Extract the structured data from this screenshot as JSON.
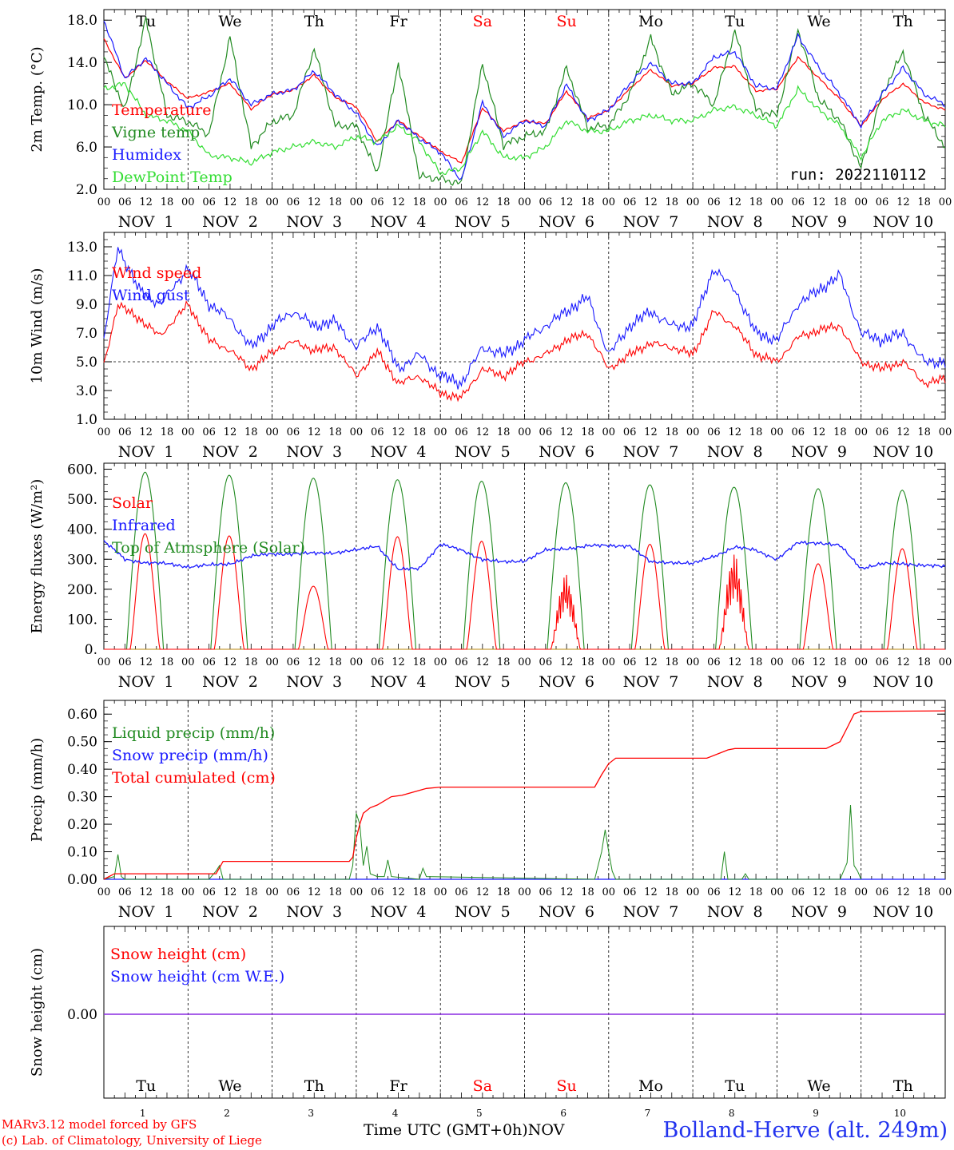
{
  "run_label": "run: 2022110112",
  "station": "Bolland-Herve (alt. 249m)",
  "credit": {
    "line1": "MARv3.12 model forced by GFS",
    "line2": "(c) Lab. of Climatology, University of Liege"
  },
  "x_title": "Time UTC (GMT+0h)",
  "x_title_suffix": "NOV",
  "weekdays": [
    "Tu",
    "We",
    "Th",
    "Fr",
    "Sa",
    "Su",
    "Mo",
    "Tu",
    "We",
    "Th"
  ],
  "weekday_colors": [
    "#000000",
    "#000000",
    "#000000",
    "#000000",
    "#ff0000",
    "#ff0000",
    "#000000",
    "#000000",
    "#000000",
    "#000000"
  ],
  "date_labels": [
    "NOV  1",
    "NOV  2",
    "NOV  3",
    "NOV  4",
    "NOV  5",
    "NOV  6",
    "NOV  7",
    "NOV  8",
    "NOV  9",
    "NOV 10"
  ],
  "day_numbers": [
    "1",
    "2",
    "3",
    "4",
    "5",
    "6",
    "7",
    "8",
    "9",
    "10"
  ],
  "hour_ticks": [
    "00",
    "06",
    "12",
    "18"
  ],
  "colors": {
    "red": "#ff0000",
    "green": "#228b22",
    "blue": "#1a1aff",
    "light_green": "#33dd33",
    "purple": "#8a2be2",
    "dashed": "#000000"
  },
  "chart_data": [
    {
      "type": "line",
      "ylabel": "2m Temp. (°C)",
      "ylim": [
        2.0,
        19.0
      ],
      "yticks": [
        "2.0",
        "6.0",
        "10.0",
        "14.0",
        "18.0"
      ],
      "ytick_values": [
        2,
        6,
        10,
        14,
        18
      ],
      "x_unit": "hours since 2022-11-01 00 UTC",
      "series": [
        {
          "name": "Temperature",
          "color": "#ff0000",
          "x": [
            0,
            6,
            12,
            18,
            24,
            30,
            36,
            42,
            48,
            54,
            60,
            66,
            72,
            78,
            84,
            90,
            96,
            102,
            108,
            114,
            120,
            126,
            132,
            138,
            144,
            150,
            156,
            162,
            168,
            174,
            180,
            186,
            192,
            198,
            204,
            210,
            216,
            222,
            228,
            234,
            240
          ],
          "values": [
            16.2,
            12.5,
            14.2,
            12.2,
            10.6,
            11.2,
            12.0,
            9.6,
            11.0,
            11.4,
            12.8,
            10.7,
            9.8,
            6.5,
            8.5,
            7.0,
            5.6,
            4.5,
            9.7,
            7.5,
            8.5,
            8.2,
            11.3,
            8.7,
            9.5,
            11.5,
            13.3,
            11.8,
            12.0,
            13.5,
            13.6,
            11.3,
            11.5,
            14.5,
            12.5,
            10.5,
            8.0,
            10.5,
            12.0,
            10.2,
            9.5
          ]
        },
        {
          "name": "Vigne temp",
          "color": "#228b22",
          "x": [
            0,
            6,
            12,
            18,
            24,
            30,
            36,
            42,
            48,
            54,
            60,
            66,
            72,
            78,
            84,
            90,
            96,
            102,
            108,
            114,
            120,
            126,
            132,
            138,
            144,
            150,
            156,
            162,
            168,
            174,
            180,
            186,
            192,
            198,
            204,
            210,
            216,
            222,
            228,
            234,
            240
          ],
          "values": [
            14.5,
            9.5,
            18.1,
            9.0,
            8.4,
            7.2,
            16.4,
            6.0,
            8.4,
            9.0,
            15.3,
            8.0,
            8.0,
            3.5,
            14.0,
            3.2,
            3.0,
            2.5,
            13.9,
            6.2,
            7.0,
            7.5,
            13.5,
            7.8,
            8.0,
            11.0,
            16.3,
            11.0,
            12.0,
            10.0,
            17.0,
            9.5,
            9.0,
            17.1,
            10.5,
            8.5,
            4.0,
            11.0,
            15.0,
            9.0,
            6.0
          ]
        },
        {
          "name": "Humidex",
          "color": "#1a1aff",
          "x": [
            0,
            6,
            12,
            18,
            24,
            30,
            36,
            42,
            48,
            54,
            60,
            66,
            72,
            78,
            84,
            90,
            96,
            102,
            108,
            114,
            120,
            126,
            132,
            138,
            144,
            150,
            156,
            162,
            168,
            174,
            180,
            186,
            192,
            198,
            204,
            210,
            216,
            222,
            228,
            234,
            240
          ],
          "values": [
            18.0,
            12.5,
            14.4,
            12.0,
            9.7,
            10.8,
            12.5,
            10.0,
            11.0,
            11.4,
            13.2,
            11.0,
            9.2,
            6.0,
            8.5,
            6.8,
            5.5,
            2.8,
            10.2,
            7.0,
            8.5,
            8.0,
            11.9,
            8.5,
            9.5,
            12.0,
            14.0,
            12.0,
            12.0,
            14.5,
            15.0,
            11.8,
            11.5,
            16.5,
            13.5,
            11.0,
            8.0,
            11.0,
            13.5,
            11.0,
            10.0
          ]
        },
        {
          "name": "DewPoint Temp",
          "color": "#33dd33",
          "x": [
            0,
            6,
            12,
            18,
            24,
            30,
            36,
            42,
            48,
            54,
            60,
            66,
            72,
            78,
            84,
            90,
            96,
            102,
            108,
            114,
            120,
            126,
            132,
            138,
            144,
            150,
            156,
            162,
            168,
            174,
            180,
            186,
            192,
            198,
            204,
            210,
            216,
            222,
            228,
            234,
            240
          ],
          "values": [
            11.5,
            12.0,
            9.0,
            8.5,
            7.5,
            5.2,
            5.0,
            4.5,
            5.5,
            6.0,
            6.5,
            6.0,
            7.0,
            6.5,
            8.0,
            6.5,
            3.5,
            4.0,
            7.5,
            5.0,
            5.0,
            6.0,
            8.5,
            7.5,
            7.5,
            8.5,
            9.0,
            8.5,
            8.5,
            9.5,
            9.8,
            9.0,
            8.0,
            11.5,
            9.5,
            8.0,
            5.0,
            8.5,
            9.5,
            8.5,
            8.0
          ]
        }
      ]
    },
    {
      "type": "line",
      "ylabel": "10m Wind (m/s)",
      "ylim": [
        1.0,
        14.0
      ],
      "yticks": [
        "1.0",
        "3.0",
        "5.0",
        "7.0",
        "9.0",
        "11.0",
        "13.0"
      ],
      "ytick_values": [
        1,
        3,
        5,
        7,
        9,
        11,
        13
      ],
      "reference_line": 5.0,
      "x_unit": "hours since 2022-11-01 00 UTC",
      "series": [
        {
          "name": "Wind speed",
          "color": "#ff0000",
          "x": [
            0,
            4,
            10,
            16,
            24,
            30,
            36,
            42,
            48,
            54,
            60,
            66,
            72,
            78,
            84,
            90,
            96,
            102,
            108,
            114,
            120,
            126,
            132,
            138,
            144,
            150,
            156,
            162,
            168,
            174,
            180,
            186,
            192,
            198,
            204,
            210,
            216,
            222,
            228,
            234,
            240
          ],
          "values": [
            4.8,
            9.0,
            8.0,
            6.8,
            9.0,
            6.5,
            5.8,
            4.5,
            5.7,
            6.4,
            5.8,
            6.0,
            4.0,
            5.7,
            3.5,
            4.0,
            2.8,
            2.5,
            4.5,
            4.0,
            5.0,
            5.5,
            6.5,
            7.0,
            4.5,
            5.5,
            6.3,
            6.0,
            5.5,
            8.5,
            7.5,
            5.5,
            5.0,
            6.7,
            7.2,
            7.5,
            5.0,
            4.5,
            5.0,
            3.5,
            3.8
          ]
        },
        {
          "name": "Wind gust",
          "color": "#1a1aff",
          "x": [
            0,
            4,
            10,
            16,
            24,
            30,
            36,
            42,
            48,
            54,
            60,
            66,
            72,
            78,
            84,
            90,
            96,
            102,
            108,
            114,
            120,
            126,
            132,
            138,
            144,
            150,
            156,
            162,
            168,
            174,
            180,
            186,
            192,
            198,
            204,
            210,
            216,
            222,
            228,
            234,
            240
          ],
          "values": [
            6.5,
            13.0,
            10.0,
            9.0,
            11.5,
            9.0,
            8.0,
            6.0,
            7.5,
            8.5,
            7.5,
            7.8,
            6.0,
            7.5,
            4.5,
            5.5,
            4.0,
            3.5,
            6.0,
            5.5,
            6.5,
            7.5,
            8.5,
            9.5,
            5.5,
            7.5,
            8.5,
            7.5,
            7.5,
            11.5,
            10.0,
            7.0,
            6.5,
            9.0,
            10.0,
            11.0,
            7.0,
            6.5,
            7.0,
            5.0,
            5.0
          ]
        }
      ]
    },
    {
      "type": "line",
      "ylabel": "Energy fluxes (W/m²)",
      "ylim": [
        0,
        620
      ],
      "yticks": [
        "0.",
        "100.",
        "200.",
        "300.",
        "400.",
        "500.",
        "600."
      ],
      "ytick_values": [
        0,
        100,
        200,
        300,
        400,
        500,
        600
      ],
      "x_unit": "hours since 2022-11-01 00 UTC",
      "daily_peaks": {
        "Solar": [
          385,
          378,
          210,
          375,
          360,
          250,
          350,
          320,
          285,
          335
        ],
        "Top of Atmosphere (Solar)": [
          590,
          580,
          570,
          565,
          560,
          555,
          548,
          540,
          535,
          530
        ]
      },
      "series": [
        {
          "name": "Solar",
          "color": "#ff0000",
          "x": [],
          "values": []
        },
        {
          "name": "Infrared",
          "color": "#1a1aff",
          "x": [
            0,
            6,
            12,
            18,
            24,
            30,
            36,
            42,
            48,
            54,
            60,
            66,
            72,
            78,
            84,
            90,
            96,
            102,
            108,
            114,
            120,
            126,
            132,
            138,
            144,
            150,
            156,
            162,
            168,
            174,
            180,
            186,
            192,
            198,
            204,
            210,
            216,
            222,
            228,
            234,
            240
          ],
          "values": [
            360,
            300,
            288,
            285,
            275,
            280,
            285,
            310,
            318,
            318,
            320,
            322,
            330,
            345,
            265,
            270,
            350,
            330,
            300,
            290,
            295,
            330,
            335,
            345,
            345,
            345,
            290,
            290,
            285,
            310,
            340,
            330,
            300,
            355,
            355,
            345,
            270,
            285,
            285,
            280,
            275
          ]
        },
        {
          "name": "Top of Atmsphere (Solar)",
          "color": "#228b22",
          "x": [],
          "values": []
        }
      ]
    },
    {
      "type": "line",
      "ylabel": "Precip (mm/h)",
      "ylim": [
        0,
        0.65
      ],
      "yticks": [
        "0.00",
        "0.10",
        "0.20",
        "0.30",
        "0.40",
        "0.50",
        "0.60"
      ],
      "ytick_values": [
        0,
        0.1,
        0.2,
        0.3,
        0.4,
        0.5,
        0.6
      ],
      "x_unit": "hours since 2022-11-01 00 UTC",
      "series": [
        {
          "name": "Liquid precip (mm/h)",
          "color": "#228b22",
          "x": [
            0,
            3,
            4,
            5,
            6,
            30,
            32,
            33,
            34,
            70,
            71,
            72,
            73,
            74,
            75,
            76,
            78,
            80,
            81,
            82,
            90,
            91,
            92,
            140,
            141,
            142,
            143,
            144,
            145,
            146,
            176,
            177,
            178,
            182,
            183,
            184,
            210,
            211,
            212,
            213,
            214,
            215,
            216
          ],
          "values": [
            0,
            0.01,
            0.09,
            0.01,
            0,
            0,
            0.03,
            0.05,
            0,
            0,
            0.05,
            0.24,
            0.2,
            0.05,
            0.12,
            0.02,
            0.01,
            0.01,
            0.07,
            0.01,
            0,
            0.04,
            0.01,
            0,
            0.05,
            0.1,
            0.18,
            0.1,
            0.03,
            0,
            0,
            0.1,
            0,
            0,
            0.02,
            0,
            0,
            0.03,
            0.06,
            0.27,
            0.05,
            0.03,
            0
          ]
        },
        {
          "name": "Snow precip (mm/h)",
          "color": "#1a1aff",
          "x": [
            0,
            240
          ],
          "values": [
            0,
            0
          ]
        },
        {
          "name": "Total cumulated (cm)",
          "color": "#ff0000",
          "x": [
            0,
            3,
            5,
            32,
            34,
            70,
            71,
            72,
            73,
            74,
            76,
            78,
            82,
            85,
            92,
            96,
            140,
            142,
            144,
            146,
            172,
            176,
            178,
            180,
            206,
            210,
            212,
            214,
            216,
            240
          ],
          "values": [
            0,
            0.02,
            0.02,
            0.02,
            0.065,
            0.065,
            0.08,
            0.15,
            0.2,
            0.24,
            0.26,
            0.27,
            0.3,
            0.305,
            0.33,
            0.335,
            0.335,
            0.38,
            0.42,
            0.44,
            0.44,
            0.46,
            0.47,
            0.475,
            0.475,
            0.5,
            0.55,
            0.6,
            0.61,
            0.612
          ]
        }
      ]
    },
    {
      "type": "line",
      "ylabel": "Snow height (cm)",
      "yticks": [
        "0.00"
      ],
      "ytick_values": [
        0
      ],
      "x_unit": "hours since 2022-11-01 00 UTC",
      "series": [
        {
          "name": "Snow height (cm)",
          "color": "#ff0000",
          "x": [
            0,
            240
          ],
          "values": [
            0,
            0
          ]
        },
        {
          "name": "Snow height (cm W.E.)",
          "color": "#1a1aff",
          "x": [
            0,
            240
          ],
          "values": [
            0,
            0
          ]
        }
      ]
    }
  ]
}
